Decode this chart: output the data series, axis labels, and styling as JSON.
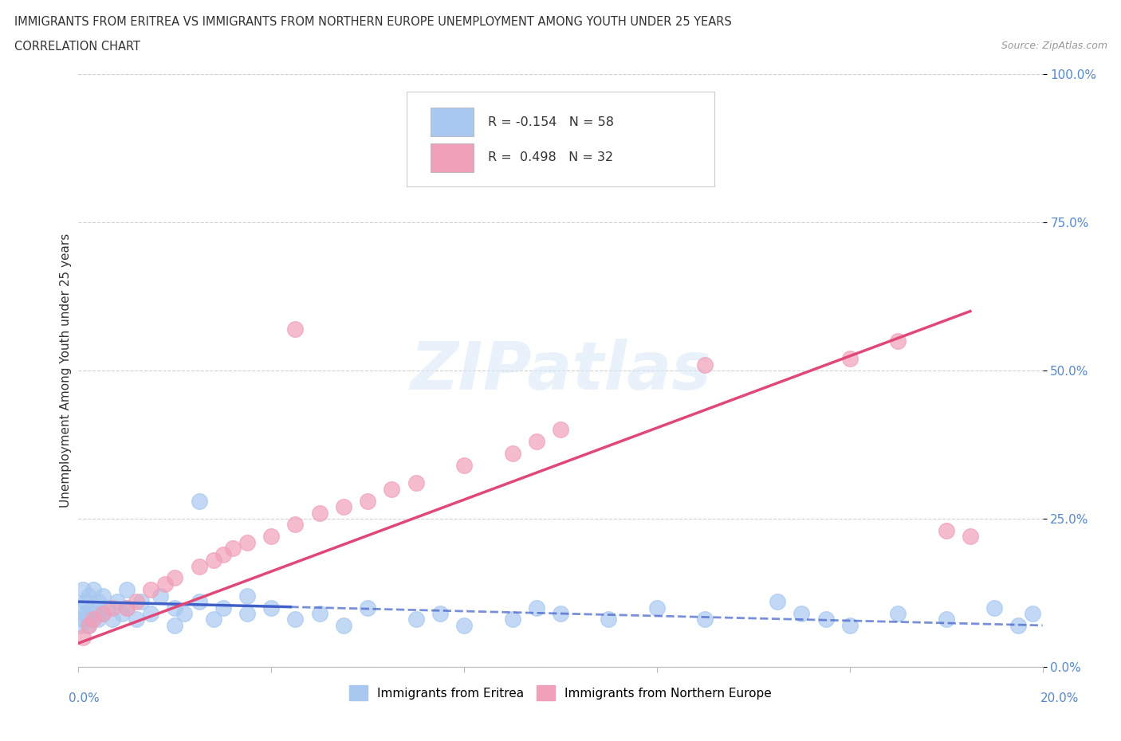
{
  "title_line1": "IMMIGRANTS FROM ERITREA VS IMMIGRANTS FROM NORTHERN EUROPE UNEMPLOYMENT AMONG YOUTH UNDER 25 YEARS",
  "title_line2": "CORRELATION CHART",
  "source_text": "Source: ZipAtlas.com",
  "ylabel": "Unemployment Among Youth under 25 years",
  "yticks": [
    "0.0%",
    "25.0%",
    "50.0%",
    "75.0%",
    "100.0%"
  ],
  "ytick_vals": [
    0,
    25,
    50,
    75,
    100
  ],
  "xlim": [
    0,
    20
  ],
  "ylim": [
    0,
    100
  ],
  "eritrea_color": "#a8c8f0",
  "northern_color": "#f0a0b8",
  "eritrea_trend_color": "#4060c8",
  "northern_trend_color": "#e04878",
  "eritrea_scatter_x": [
    0.05,
    0.05,
    0.1,
    0.1,
    0.15,
    0.15,
    0.2,
    0.2,
    0.25,
    0.3,
    0.3,
    0.35,
    0.4,
    0.4,
    0.5,
    0.5,
    0.6,
    0.7,
    0.8,
    0.9,
    1.0,
    1.0,
    1.2,
    1.3,
    1.5,
    1.7,
    2.0,
    2.0,
    2.2,
    2.5,
    2.8,
    3.0,
    3.5,
    3.5,
    4.0,
    4.5,
    5.0,
    5.5,
    6.0,
    7.0,
    7.5,
    8.0,
    9.0,
    9.5,
    10.0,
    11.0,
    12.0,
    13.0,
    14.5,
    15.0,
    15.5,
    16.0,
    17.0,
    18.0,
    19.0,
    19.5,
    19.8,
    2.5
  ],
  "eritrea_scatter_y": [
    7,
    10,
    8,
    13,
    9,
    11,
    7,
    12,
    8,
    10,
    13,
    9,
    11,
    8,
    12,
    9,
    10,
    8,
    11,
    9,
    10,
    13,
    8,
    11,
    9,
    12,
    10,
    7,
    9,
    11,
    8,
    10,
    9,
    12,
    10,
    8,
    9,
    7,
    10,
    8,
    9,
    7,
    8,
    10,
    9,
    8,
    10,
    8,
    11,
    9,
    8,
    7,
    9,
    8,
    10,
    7,
    9,
    28
  ],
  "northern_scatter_x": [
    0.1,
    0.2,
    0.3,
    0.5,
    0.7,
    1.0,
    1.2,
    1.5,
    1.8,
    2.0,
    2.5,
    2.8,
    3.0,
    3.2,
    3.5,
    4.0,
    4.5,
    5.0,
    5.5,
    6.0,
    6.5,
    7.0,
    8.0,
    9.0,
    9.5,
    10.0,
    13.0,
    16.0,
    17.0,
    18.0,
    18.5,
    4.5
  ],
  "northern_scatter_y": [
    5,
    7,
    8,
    9,
    10,
    10,
    11,
    13,
    14,
    15,
    17,
    18,
    19,
    20,
    21,
    22,
    24,
    26,
    27,
    28,
    30,
    31,
    34,
    36,
    38,
    40,
    51,
    52,
    55,
    23,
    22,
    57
  ],
  "eritrea_trend_x0": 0,
  "eritrea_trend_x1": 20,
  "eritrea_trend_y0": 11,
  "eritrea_trend_y1": 7,
  "northern_trend_x0": 0,
  "northern_trend_x1": 18.5,
  "northern_trend_y0": 4,
  "northern_trend_y1": 60,
  "legend_eritrea": "R = -0.154   N = 58",
  "legend_northern": "R =  0.498   N = 32",
  "bottom_eritrea": "Immigrants from Eritrea",
  "bottom_northern": "Immigrants from Northern Europe",
  "watermark": "ZIPatlas"
}
